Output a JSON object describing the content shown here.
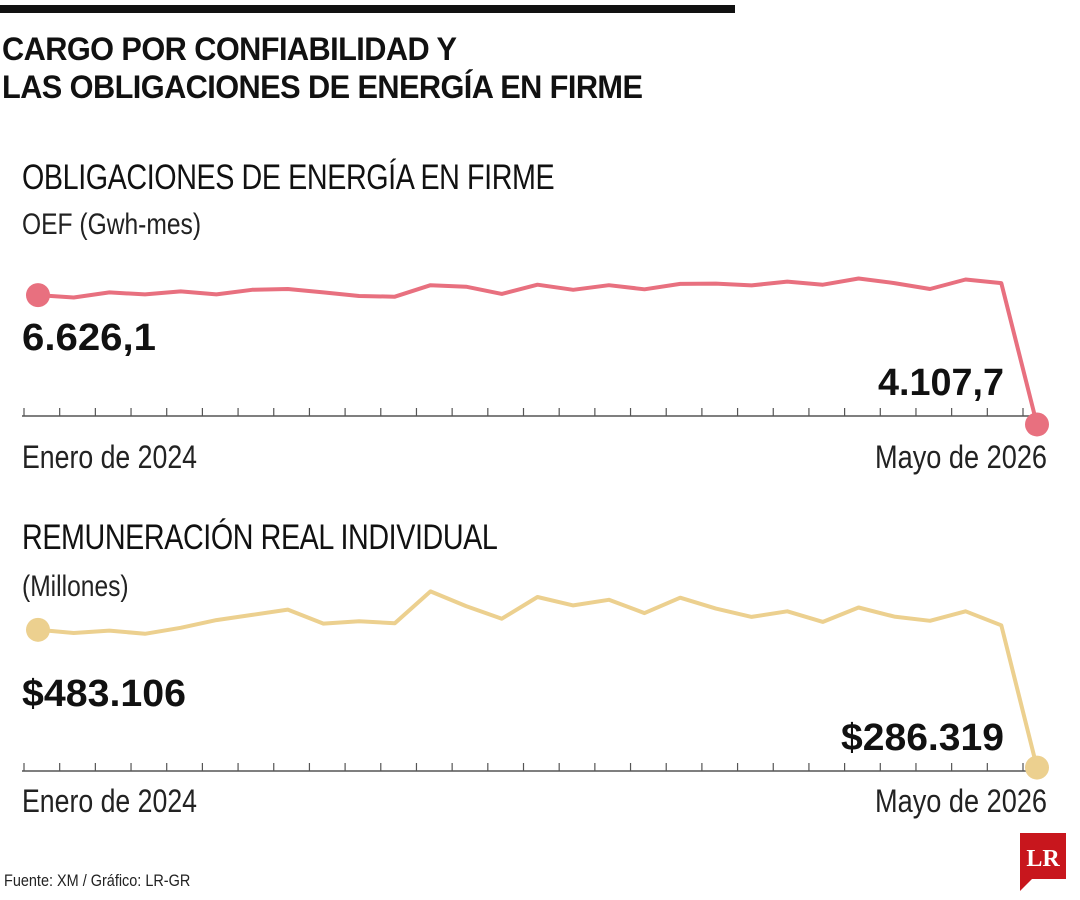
{
  "header": {
    "title_lines": [
      "CARGO POR CONFIABILIDAD Y",
      "LAS OBLIGACIONES DE ENERGÍA EN FIRME"
    ]
  },
  "footer": {
    "source": "Fuente: XM / Gráfico: LR-GR",
    "logo_text": "LR"
  },
  "colors": {
    "oef_line": "#e8707f",
    "remuneracion_line": "#ecd08f",
    "axis": "#555555"
  },
  "chart_data": [
    {
      "type": "line",
      "title": "OBLIGACIONES DE ENERGÍA EN FIRME",
      "subtitle": "OEF (Gwh-mes)",
      "x_start_label": "Enero de 2024",
      "x_end_label": "Mayo de 2026",
      "start_value_label": "6.626,1",
      "end_value_label": "4.107,7",
      "ylim": [
        4000,
        7700
      ],
      "series": [
        {
          "values": [
            6626.1,
            6580,
            6680,
            6640,
            6700,
            6640,
            6730,
            6745,
            6680,
            6610,
            6595,
            6820,
            6790,
            6650,
            6830,
            6730,
            6820,
            6740,
            6845,
            6850,
            6815,
            6890,
            6830,
            6950,
            6860,
            6745,
            6930,
            6860,
            4107.7
          ]
        }
      ]
    },
    {
      "type": "line",
      "title": "REMUNERACIÓN REAL INDIVIDUAL",
      "subtitle": "(Millones)",
      "x_start_label": "Enero de 2024",
      "x_end_label": "Mayo de 2026",
      "start_value_label": "$483.106",
      "end_value_label": "$286.319",
      "ylim": [
        260000,
        560000
      ],
      "series": [
        {
          "values": [
            483106,
            478500,
            482000,
            477500,
            486000,
            497000,
            504500,
            512000,
            492000,
            495500,
            492500,
            538000,
            517000,
            499000,
            530000,
            518000,
            526000,
            507000,
            529000,
            513500,
            501500,
            509500,
            494500,
            515000,
            502000,
            496000,
            509500,
            489500,
            286319
          ]
        }
      ]
    }
  ]
}
